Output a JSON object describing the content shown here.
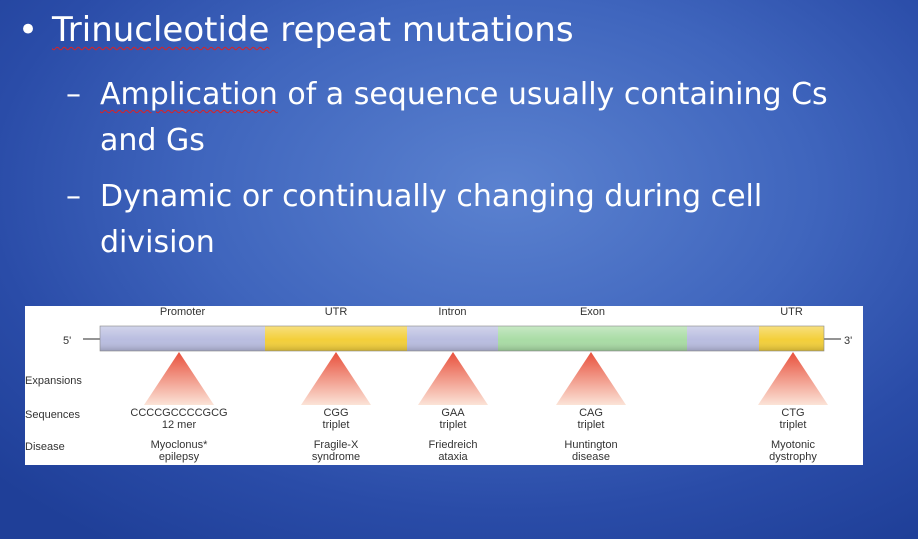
{
  "slide": {
    "bullet1_prefix": "•",
    "bullet1_underlined": "Trinucleotide",
    "bullet1_rest": " repeat mutations",
    "sub1_dash": "–",
    "sub1_underlined": "Amplication",
    "sub1_rest": " of a sequence usually containing Cs",
    "sub1_line2": "and Gs",
    "sub2_dash": "–",
    "sub2_line1": "Dynamic or continually changing during cell",
    "sub2_line2": "division"
  },
  "diagram": {
    "end5": "5'",
    "end3": "3'",
    "row_labels": {
      "expansions": "Expansions",
      "sequences": "Sequences",
      "disease": "Disease"
    },
    "regions": [
      {
        "name": "Promoter",
        "color": "#b9bde0"
      },
      {
        "name": "UTR",
        "color": "#f3cf3a"
      },
      {
        "name": "Intron",
        "color": "#b9bde0"
      },
      {
        "name": "Exon",
        "color": "#a9dca5"
      },
      {
        "name": "UTR",
        "color": "#f3cf3a"
      }
    ],
    "sites": [
      {
        "seq1": "CCCCGCCCCGCG",
        "seq2": "12 mer",
        "dis1": "Myoclonus*",
        "dis2": "epilepsy"
      },
      {
        "seq1": "CGG",
        "seq2": "triplet",
        "dis1": "Fragile-X",
        "dis2": "syndrome"
      },
      {
        "seq1": "GAA",
        "seq2": "triplet",
        "dis1": "Friedreich",
        "dis2": "ataxia"
      },
      {
        "seq1": "CAG",
        "seq2": "triplet",
        "dis1": "Huntington",
        "dis2": "disease"
      },
      {
        "seq1": "CTG",
        "seq2": "triplet",
        "dis1": "Myotonic",
        "dis2": "dystrophy"
      }
    ]
  }
}
